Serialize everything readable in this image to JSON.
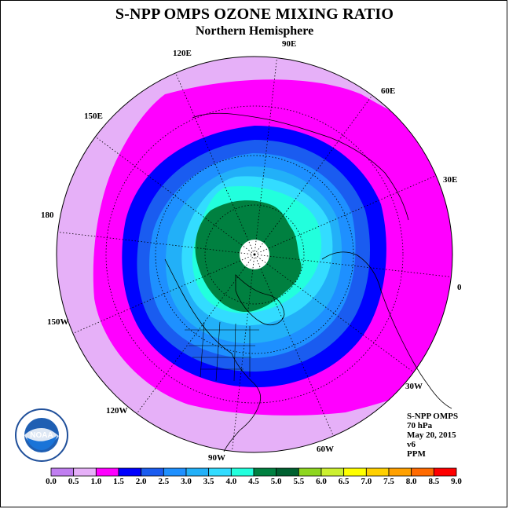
{
  "title": "S-NPP OMPS OZONE MIXING RATIO",
  "subtitle": "Northern Hemisphere",
  "longitude_labels": [
    "90E",
    "60E",
    "30E",
    "0",
    "30W",
    "60W",
    "90W",
    "120W",
    "150W",
    "180",
    "150E",
    "120E"
  ],
  "info": {
    "instrument": "S-NPP OMPS",
    "level": "70 hPa",
    "date": "May 20, 2015",
    "version": "v6",
    "units": "PPM"
  },
  "logo": {
    "icon": "noaa-logo",
    "text": "NOAA"
  },
  "colorbar": {
    "ticks": [
      "0.0",
      "0.5",
      "1.0",
      "1.5",
      "2.0",
      "2.5",
      "3.0",
      "3.5",
      "4.0",
      "4.5",
      "5.0",
      "5.5",
      "6.0",
      "6.5",
      "7.0",
      "7.5",
      "8.0",
      "8.5",
      "9.0"
    ],
    "colors": [
      "#c07ef0",
      "#e6b0f8",
      "#ff00ff",
      "#0000ff",
      "#1a5cf0",
      "#1e90ff",
      "#22b0f8",
      "#33dcff",
      "#22ffdd",
      "#008040",
      "#006030",
      "#8ed620",
      "#ccf030",
      "#ffff00",
      "#ffd000",
      "#ffa000",
      "#ff6a00",
      "#ff0000",
      "#8b5a2b"
    ]
  },
  "ozone_field": {
    "projection": "polar-stereographic",
    "levels_ppm": [
      0.5,
      1.0,
      1.5,
      2.0,
      2.5,
      3.0,
      3.5,
      4.0,
      4.5
    ],
    "level_colors": [
      "#e6b0f8",
      "#ff00ff",
      "#0000ff",
      "#1a5cf0",
      "#1e90ff",
      "#22b0f8",
      "#33dcff",
      "#22ffdd",
      "#008040"
    ],
    "polar_gap_color": "#ffffff"
  }
}
